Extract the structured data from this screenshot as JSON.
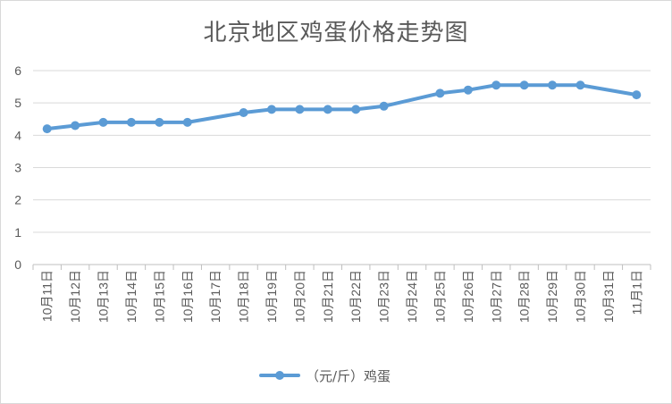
{
  "chart_data": {
    "type": "line",
    "title": "北京地区鸡蛋价格走势图",
    "categories": [
      "10月11日",
      "10月12日",
      "10月13日",
      "10月14日",
      "10月15日",
      "10月16日",
      "10月17日",
      "10月18日",
      "10月19日",
      "10月20日",
      "10月21日",
      "10月22日",
      "10月23日",
      "10月24日",
      "10月25日",
      "10月26日",
      "10月27日",
      "10月28日",
      "10月29日",
      "10月30日",
      "10月31日",
      "11月1日"
    ],
    "series": [
      {
        "name": "（元/斤）鸡蛋",
        "color": "#5b9bd5",
        "values": [
          4.2,
          4.3,
          4.4,
          4.4,
          4.4,
          4.4,
          null,
          4.7,
          4.8,
          4.8,
          4.8,
          4.8,
          4.9,
          null,
          5.3,
          5.4,
          5.55,
          5.55,
          5.55,
          5.55,
          null,
          5.25
        ]
      }
    ],
    "yticks": [
      "0",
      "1",
      "2",
      "3",
      "4",
      "5",
      "6"
    ],
    "ylim": [
      0,
      6
    ],
    "grid": true,
    "legend": "bottom",
    "gridColor": "#d9d9d9",
    "axisColor": "#bfbfbf"
  }
}
